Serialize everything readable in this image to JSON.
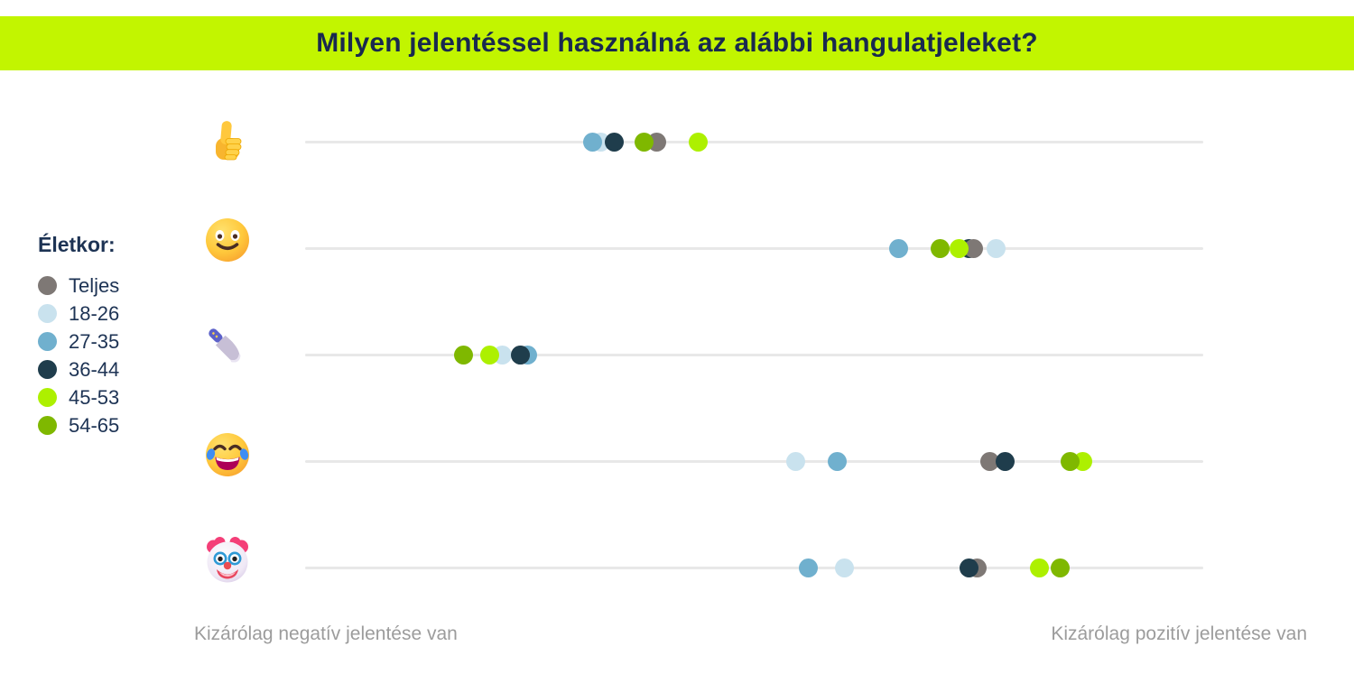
{
  "title": "Milyen jelentéssel használná az alábbi hangulatjeleket?",
  "banner": {
    "bg_color": "#c2f500",
    "text_color": "#19294f"
  },
  "legend": {
    "title": "Életkor:",
    "text_color": "#1d3354",
    "entries": [
      {
        "label": "Teljes",
        "color": "#7e7875"
      },
      {
        "label": "18-26",
        "color": "#c9e2ee"
      },
      {
        "label": "27-35",
        "color": "#70b0ce"
      },
      {
        "label": "36-44",
        "color": "#1f3d4c"
      },
      {
        "label": "45-53",
        "color": "#adf000"
      },
      {
        "label": "54-65",
        "color": "#7fb800"
      }
    ]
  },
  "axis": {
    "left_label": "Kizárólag negatív jelentése van",
    "right_label": "Kizárólag pozitív jelentése van",
    "label_color": "#9c9c9c",
    "line_color": "#e8e8e8"
  },
  "chart_data": {
    "type": "scatter",
    "title": "Milyen jelentéssel használná az alábbi hangulatjeleket?",
    "xlabel_left": "Kizárólag negatív jelentése van",
    "xlabel_right": "Kizárólag pozitív jelentése van",
    "xlim": [
      0,
      100
    ],
    "x_scale_note": "relative position along negative→positive axis, percent",
    "legend_title": "Életkor:",
    "group_colors": {
      "Teljes": "#7e7875",
      "18-26": "#c9e2ee",
      "27-35": "#70b0ce",
      "36-44": "#1f3d4c",
      "45-53": "#adf000",
      "54-65": "#7fb800"
    },
    "rows": [
      {
        "emoji": "thumbs-up",
        "points": [
          {
            "group": "18-26",
            "value": 32.9
          },
          {
            "group": "Teljes",
            "value": 39.1
          },
          {
            "group": "27-35",
            "value": 32.0
          },
          {
            "group": "36-44",
            "value": 34.4
          },
          {
            "group": "45-53",
            "value": 43.8
          },
          {
            "group": "54-65",
            "value": 37.7
          }
        ]
      },
      {
        "emoji": "slightly-smiling-face",
        "points": [
          {
            "group": "36-44",
            "value": 73.9
          },
          {
            "group": "Teljes",
            "value": 74.4
          },
          {
            "group": "54-65",
            "value": 70.7
          },
          {
            "group": "45-53",
            "value": 72.8
          },
          {
            "group": "27-35",
            "value": 66.1
          },
          {
            "group": "18-26",
            "value": 76.9
          }
        ]
      },
      {
        "emoji": "kitchen-knife",
        "points": [
          {
            "group": "27-35",
            "value": 24.8
          },
          {
            "group": "Teljes",
            "value": 24.0
          },
          {
            "group": "18-26",
            "value": 22.0
          },
          {
            "group": "45-53",
            "value": 20.6
          },
          {
            "group": "36-44",
            "value": 24.0
          },
          {
            "group": "54-65",
            "value": 17.6
          }
        ]
      },
      {
        "emoji": "face-with-tears-of-joy",
        "points": [
          {
            "group": "Teljes",
            "value": 76.2
          },
          {
            "group": "18-26",
            "value": 54.6
          },
          {
            "group": "27-35",
            "value": 59.2
          },
          {
            "group": "45-53",
            "value": 86.6
          },
          {
            "group": "36-44",
            "value": 77.9
          },
          {
            "group": "54-65",
            "value": 85.2
          }
        ]
      },
      {
        "emoji": "clown-face",
        "points": [
          {
            "group": "Teljes",
            "value": 74.8
          },
          {
            "group": "18-26",
            "value": 60.0
          },
          {
            "group": "27-35",
            "value": 56.0
          },
          {
            "group": "45-53",
            "value": 81.8
          },
          {
            "group": "36-44",
            "value": 73.9
          },
          {
            "group": "54-65",
            "value": 84.1
          }
        ]
      }
    ]
  }
}
